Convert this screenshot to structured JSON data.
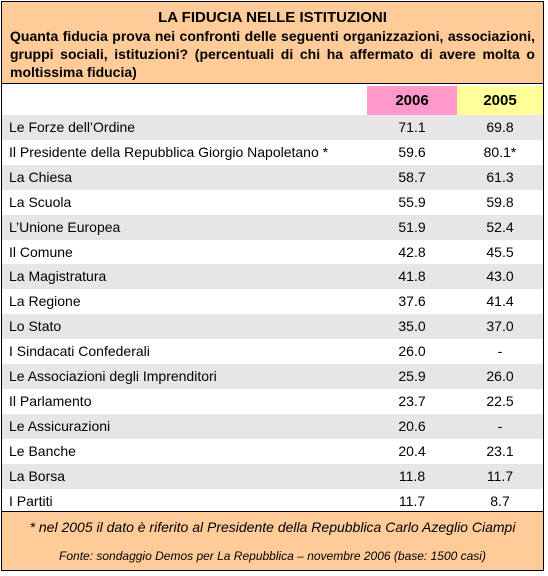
{
  "title": "LA FIDUCIA NELLE ISTITUZIONI",
  "subtitle": "Quanta fiducia prova nei confronti delle seguenti organizzazioni, associazioni, gruppi sociali, istituzioni? (percentuali di chi ha affermato di avere molta o moltissima fiducia)",
  "colors": {
    "header_bg": "#ffcc99",
    "col2006_bg": "#ff99cc",
    "col2005_bg": "#ffff99",
    "row_shade": "#e6e6e6"
  },
  "chart_data": {
    "type": "table",
    "columns": [
      "2006",
      "2005"
    ],
    "rows": [
      {
        "label": "Le Forze dell’Ordine",
        "v2006": "71.1",
        "v2005": "69.8"
      },
      {
        "label": "Il Presidente della Repubblica Giorgio Napoletano *",
        "v2006": "59.6",
        "v2005": "80.1*"
      },
      {
        "label": "La Chiesa",
        "v2006": "58.7",
        "v2005": "61.3"
      },
      {
        "label": "La Scuola",
        "v2006": "55.9",
        "v2005": "59.8"
      },
      {
        "label": "L’Unione Europea",
        "v2006": "51.9",
        "v2005": "52.4"
      },
      {
        "label": "Il Comune",
        "v2006": "42.8",
        "v2005": "45.5"
      },
      {
        "label": "La Magistratura",
        "v2006": "41.8",
        "v2005": "43.0"
      },
      {
        "label": "La Regione",
        "v2006": "37.6",
        "v2005": "41.4"
      },
      {
        "label": "Lo Stato",
        "v2006": "35.0",
        "v2005": "37.0"
      },
      {
        "label": "I Sindacati Confederali",
        "v2006": "26.0",
        "v2005": "-"
      },
      {
        "label": "Le Associazioni degli Imprenditori",
        "v2006": "25.9",
        "v2005": "26.0"
      },
      {
        "label": "Il Parlamento",
        "v2006": "23.7",
        "v2005": "22.5"
      },
      {
        "label": "Le Assicurazioni",
        "v2006": "20.6",
        "v2005": "-"
      },
      {
        "label": "Le Banche",
        "v2006": "20.4",
        "v2005": "23.1"
      },
      {
        "label": "La Borsa",
        "v2006": "11.8",
        "v2005": "11.7"
      },
      {
        "label": "I Partiti",
        "v2006": "11.7",
        "v2005": "8.7"
      }
    ]
  },
  "footer": {
    "note": "* nel 2005 il dato è riferito al Presidente della Repubblica Carlo Azeglio Ciampi",
    "source": "Fonte: sondaggio Demos per La Repubblica – novembre 2006 (base: 1500 casi)"
  }
}
